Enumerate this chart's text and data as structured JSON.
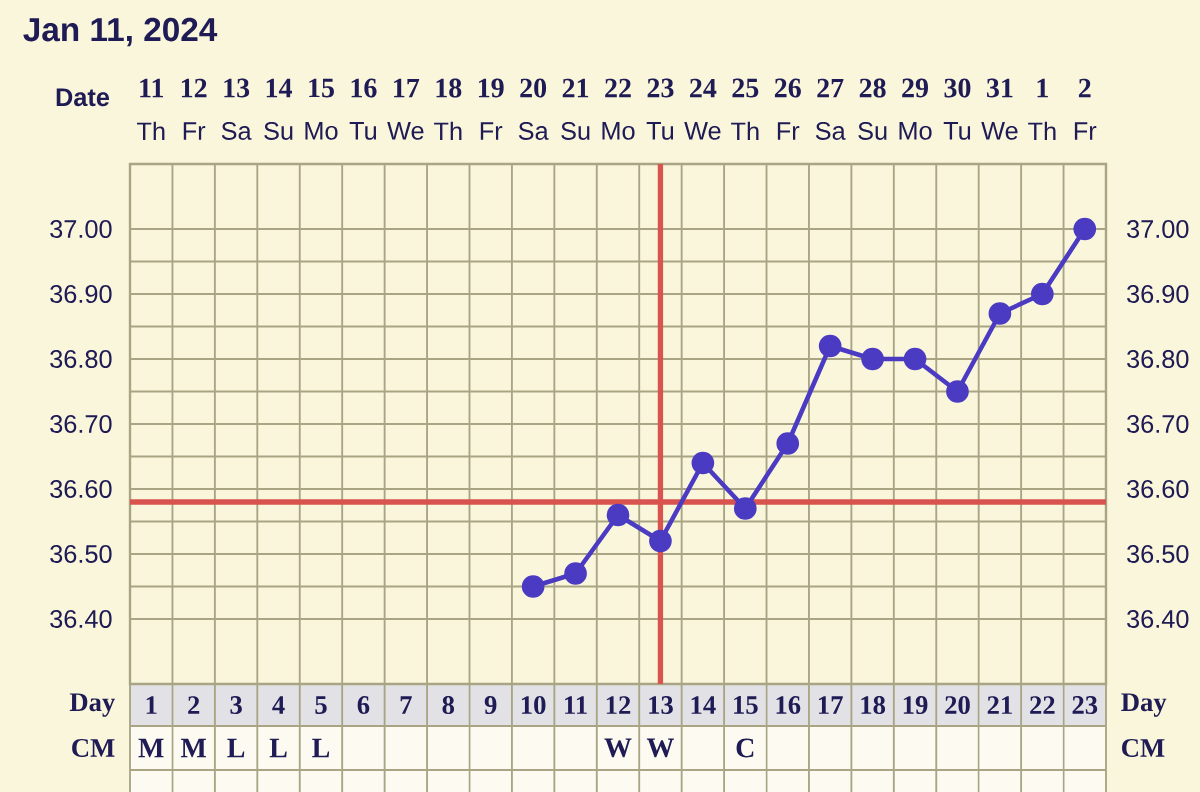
{
  "chart_data": {
    "type": "line",
    "title": "Jan 11, 2024",
    "xlabel": "Day",
    "x2label": "Date",
    "x": [
      10,
      11,
      12,
      13,
      14,
      15,
      16,
      17,
      18,
      19,
      20,
      21,
      22,
      23
    ],
    "series": [
      {
        "color": "#4a3bc2",
        "values": [
          36.45,
          36.47,
          36.56,
          36.52,
          36.64,
          36.57,
          36.67,
          36.82,
          36.8,
          36.8,
          36.75,
          36.87,
          36.9,
          37.0
        ]
      }
    ],
    "xlim": [
      0.5,
      23.5
    ],
    "xticks": [
      1,
      2,
      3,
      4,
      5,
      6,
      7,
      8,
      9,
      10,
      11,
      12,
      13,
      14,
      15,
      16,
      17,
      18,
      19,
      20,
      21,
      22,
      23
    ],
    "x2lim": [
      "2024-01-10T12:00",
      "2024-02-02T12:00"
    ],
    "x2ticks": [
      {
        "value": "2024-01-11",
        "label": "11"
      },
      {
        "value": "2024-01-12",
        "label": "12"
      },
      {
        "value": "2024-01-13",
        "label": "13"
      },
      {
        "value": "2024-01-14",
        "label": "14"
      },
      {
        "value": "2024-01-15",
        "label": "15"
      },
      {
        "value": "2024-01-16",
        "label": "16"
      },
      {
        "value": "2024-01-17",
        "label": "17"
      },
      {
        "value": "2024-01-18",
        "label": "18"
      },
      {
        "value": "2024-01-19",
        "label": "19"
      },
      {
        "value": "2024-01-20",
        "label": "20"
      },
      {
        "value": "2024-01-21",
        "label": "21"
      },
      {
        "value": "2024-01-22",
        "label": "22"
      },
      {
        "value": "2024-01-23",
        "label": "23"
      },
      {
        "value": "2024-01-24",
        "label": "24"
      },
      {
        "value": "2024-01-25",
        "label": "25"
      },
      {
        "value": "2024-01-26",
        "label": "26"
      },
      {
        "value": "2024-01-27",
        "label": "27"
      },
      {
        "value": "2024-01-28",
        "label": "28"
      },
      {
        "value": "2024-01-29",
        "label": "29"
      },
      {
        "value": "2024-01-30",
        "label": "30"
      },
      {
        "value": "2024-01-31",
        "label": "31"
      },
      {
        "value": "2024-02-01",
        "label": "1"
      },
      {
        "value": "2024-02-02",
        "label": "2"
      }
    ],
    "ylim": [
      36.3,
      37.1
    ],
    "yticks": [
      {
        "value": 36.4,
        "label": "36.40"
      },
      {
        "value": 36.5,
        "label": "36.50"
      },
      {
        "value": 36.6,
        "label": "36.60"
      },
      {
        "value": 36.7,
        "label": "36.70"
      },
      {
        "value": 36.8,
        "label": "36.80"
      },
      {
        "value": 36.9,
        "label": "36.90"
      },
      {
        "value": 37.0,
        "label": "37.00"
      }
    ],
    "y2lim": [
      36.3,
      37.1
    ],
    "y2ticks": [
      {
        "value": 36.4,
        "label": "36.40"
      },
      {
        "value": 36.5,
        "label": "36.50"
      },
      {
        "value": 36.6,
        "label": "36.60"
      },
      {
        "value": 36.7,
        "label": "36.70"
      },
      {
        "value": 36.8,
        "label": "36.80"
      },
      {
        "value": 36.9,
        "label": "36.90"
      },
      {
        "value": 37.0,
        "label": "37.00"
      }
    ],
    "ref_lines": [
      {
        "axis": "x",
        "value": 13,
        "color": "#d9534f"
      },
      {
        "axis": "y",
        "value": 36.58,
        "color": "#d9534f"
      }
    ],
    "annotations": [
      "CM",
      "Th",
      "Fr",
      "Sa",
      "Su",
      "Mo",
      "Tu",
      "We",
      "Th",
      "Fr",
      "Sa",
      "Su",
      "Mo",
      "Tu",
      "We",
      "Th",
      "Fr",
      "Sa",
      "Su",
      "Mo",
      "Tu",
      "We",
      "Th",
      "Fr",
      "M",
      "M",
      "L",
      "L",
      "L",
      null,
      null,
      null,
      null,
      null,
      null,
      "W",
      "W",
      null,
      "C",
      null,
      null,
      null,
      null,
      null,
      null,
      null,
      null
    ],
    "grid": true,
    "marker": "circle",
    "line_style": "solid"
  }
}
